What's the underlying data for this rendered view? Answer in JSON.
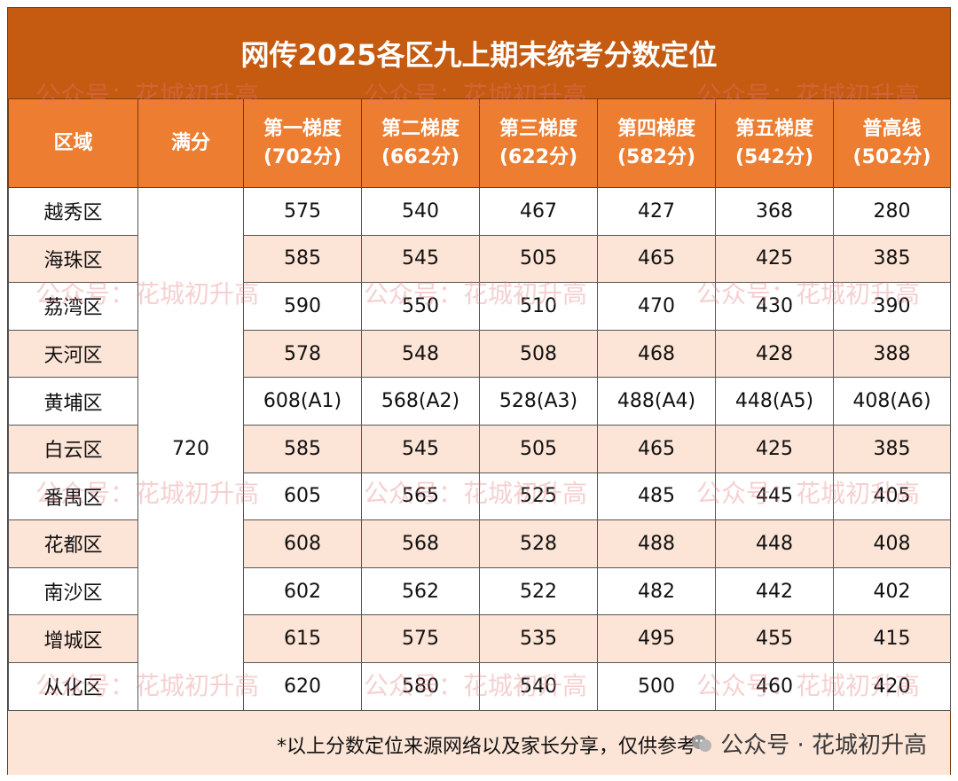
{
  "title": "网传2025各区九上期末统考分数定位",
  "headers": [
    {
      "line1": "区域",
      "line2": ""
    },
    {
      "line1": "满分",
      "line2": ""
    },
    {
      "line1": "第一梯度",
      "line2": "(702分)"
    },
    {
      "line1": "第二梯度",
      "line2": "(662分)"
    },
    {
      "line1": "第三梯度",
      "line2": "(622分)"
    },
    {
      "line1": "第四梯度",
      "line2": "(582分)"
    },
    {
      "line1": "第五梯度",
      "line2": "(542分)"
    },
    {
      "line1": "普高线",
      "line2": "(502分)"
    }
  ],
  "full_score": "720",
  "rows": [
    {
      "district": "越秀区",
      "scores": [
        "575",
        "540",
        "467",
        "427",
        "368",
        "280"
      ]
    },
    {
      "district": "海珠区",
      "scores": [
        "585",
        "545",
        "505",
        "465",
        "425",
        "385"
      ]
    },
    {
      "district": "荔湾区",
      "scores": [
        "590",
        "550",
        "510",
        "470",
        "430",
        "390"
      ]
    },
    {
      "district": "天河区",
      "scores": [
        "578",
        "548",
        "508",
        "468",
        "428",
        "388"
      ]
    },
    {
      "district": "黄埔区",
      "scores": [
        "608(A1)",
        "568(A2)",
        "528(A3)",
        "488(A4)",
        "448(A5)",
        "408(A6)"
      ]
    },
    {
      "district": "白云区",
      "scores": [
        "585",
        "545",
        "505",
        "465",
        "425",
        "385"
      ]
    },
    {
      "district": "番禺区",
      "scores": [
        "605",
        "565",
        "525",
        "485",
        "445",
        "405"
      ]
    },
    {
      "district": "花都区",
      "scores": [
        "608",
        "568",
        "528",
        "488",
        "448",
        "408"
      ]
    },
    {
      "district": "南沙区",
      "scores": [
        "602",
        "562",
        "522",
        "482",
        "442",
        "402"
      ]
    },
    {
      "district": "增城区",
      "scores": [
        "615",
        "575",
        "535",
        "495",
        "455",
        "415"
      ]
    },
    {
      "district": "从化区",
      "scores": [
        "620",
        "580",
        "540",
        "500",
        "460",
        "420"
      ]
    }
  ],
  "footer_note": "*以上分数定位来源网络以及家长分享，仅供参考",
  "footer_brand": "公众号 · 花城初升高",
  "watermark": "公众号：花城初升高",
  "colors": {
    "title_bg": "#c55a11",
    "header_bg": "#ed7d31",
    "stripe": "#fce4d6"
  }
}
